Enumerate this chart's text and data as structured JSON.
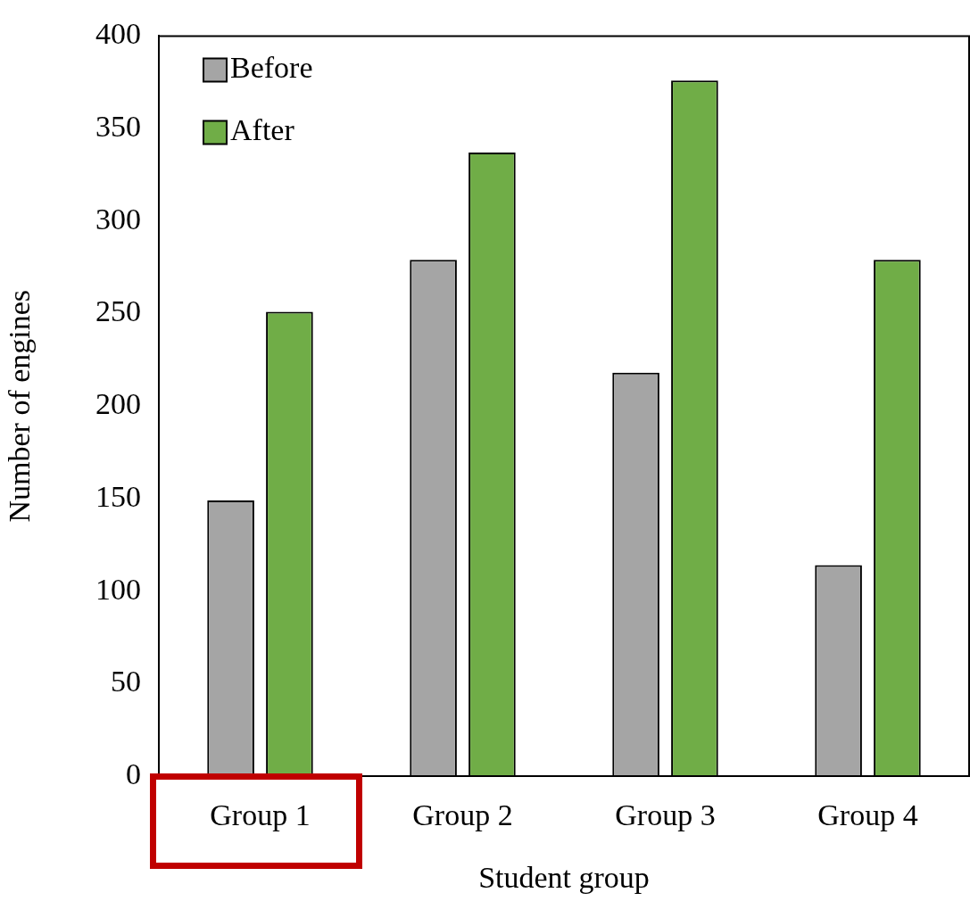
{
  "chart_data": {
    "type": "bar",
    "xlabel": "Student group",
    "ylabel": "Number of engines",
    "categories": [
      "Group 1",
      "Group 2",
      "Group 3",
      "Group 4"
    ],
    "series": [
      {
        "name": "Before",
        "color": "#a5a5a5",
        "values": [
          149,
          279,
          218,
          114
        ]
      },
      {
        "name": "After",
        "color": "#70ad47",
        "values": [
          251,
          337,
          376,
          279
        ]
      }
    ],
    "ylim": [
      0,
      400
    ],
    "yticks": [
      0,
      50,
      100,
      150,
      200,
      250,
      300,
      350,
      400
    ],
    "grid": false,
    "legend": "top left"
  }
}
